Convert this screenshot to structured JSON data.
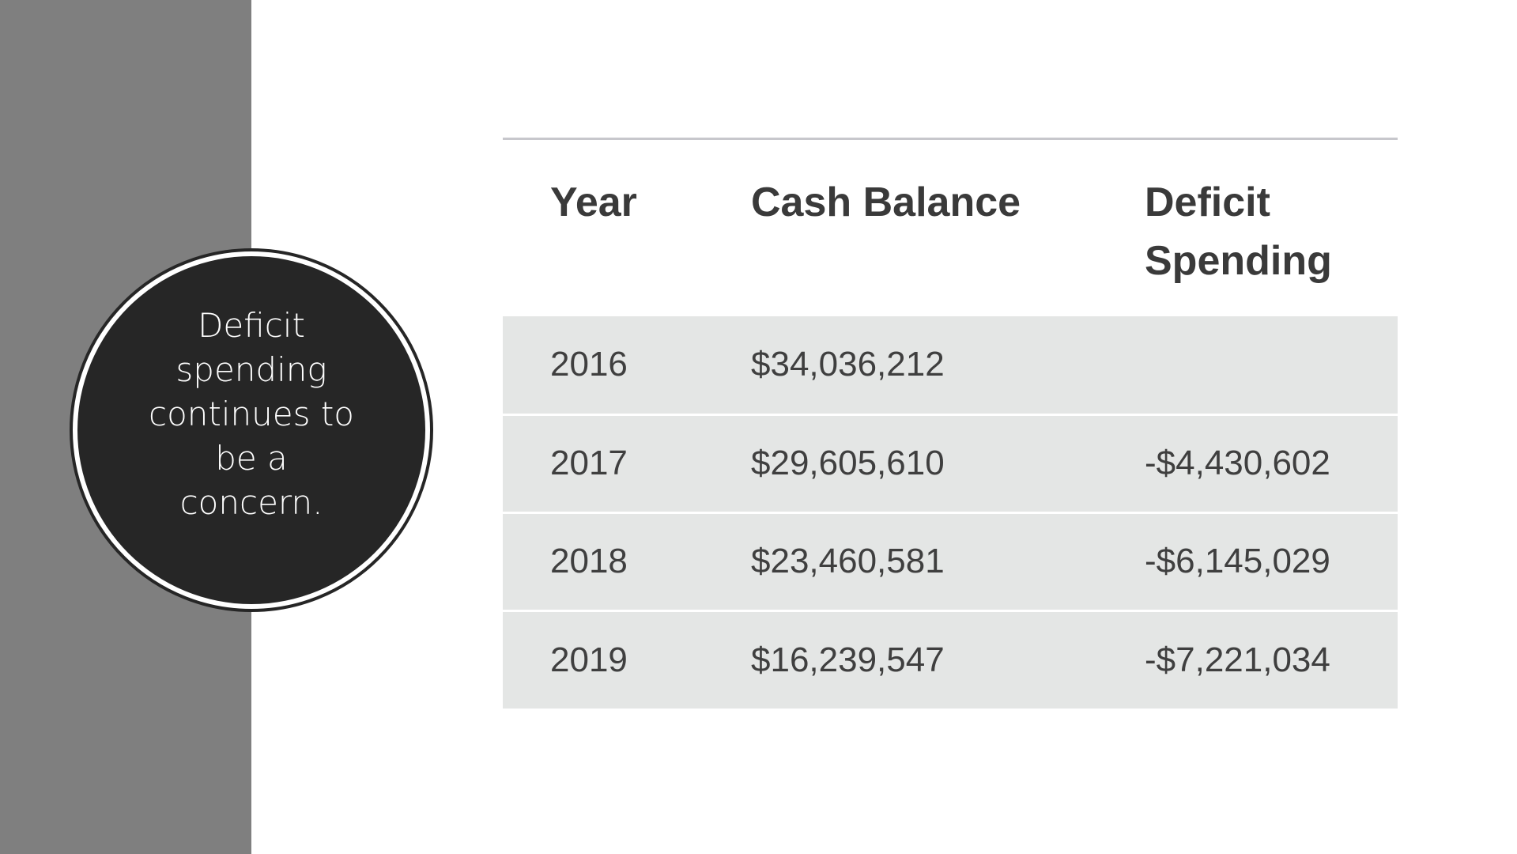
{
  "callout": {
    "text": "Deficit spending continues to be a concern."
  },
  "table": {
    "headers": [
      "Year",
      "Cash Balance",
      "Deficit Spending"
    ],
    "rows": [
      {
        "year": "2016",
        "cash_balance": "$34,036,212",
        "deficit_spending": ""
      },
      {
        "year": "2017",
        "cash_balance": "$29,605,610",
        "deficit_spending": "-$4,430,602"
      },
      {
        "year": "2018",
        "cash_balance": "$23,460,581",
        "deficit_spending": "-$6,145,029"
      },
      {
        "year": "2019",
        "cash_balance": "$16,239,547",
        "deficit_spending": "-$7,221,034"
      }
    ]
  },
  "colors": {
    "side_panel": "#7f7f7f",
    "circle": "#262626",
    "row_fill": "#e4e6e5",
    "text": "#3f3f3f"
  }
}
